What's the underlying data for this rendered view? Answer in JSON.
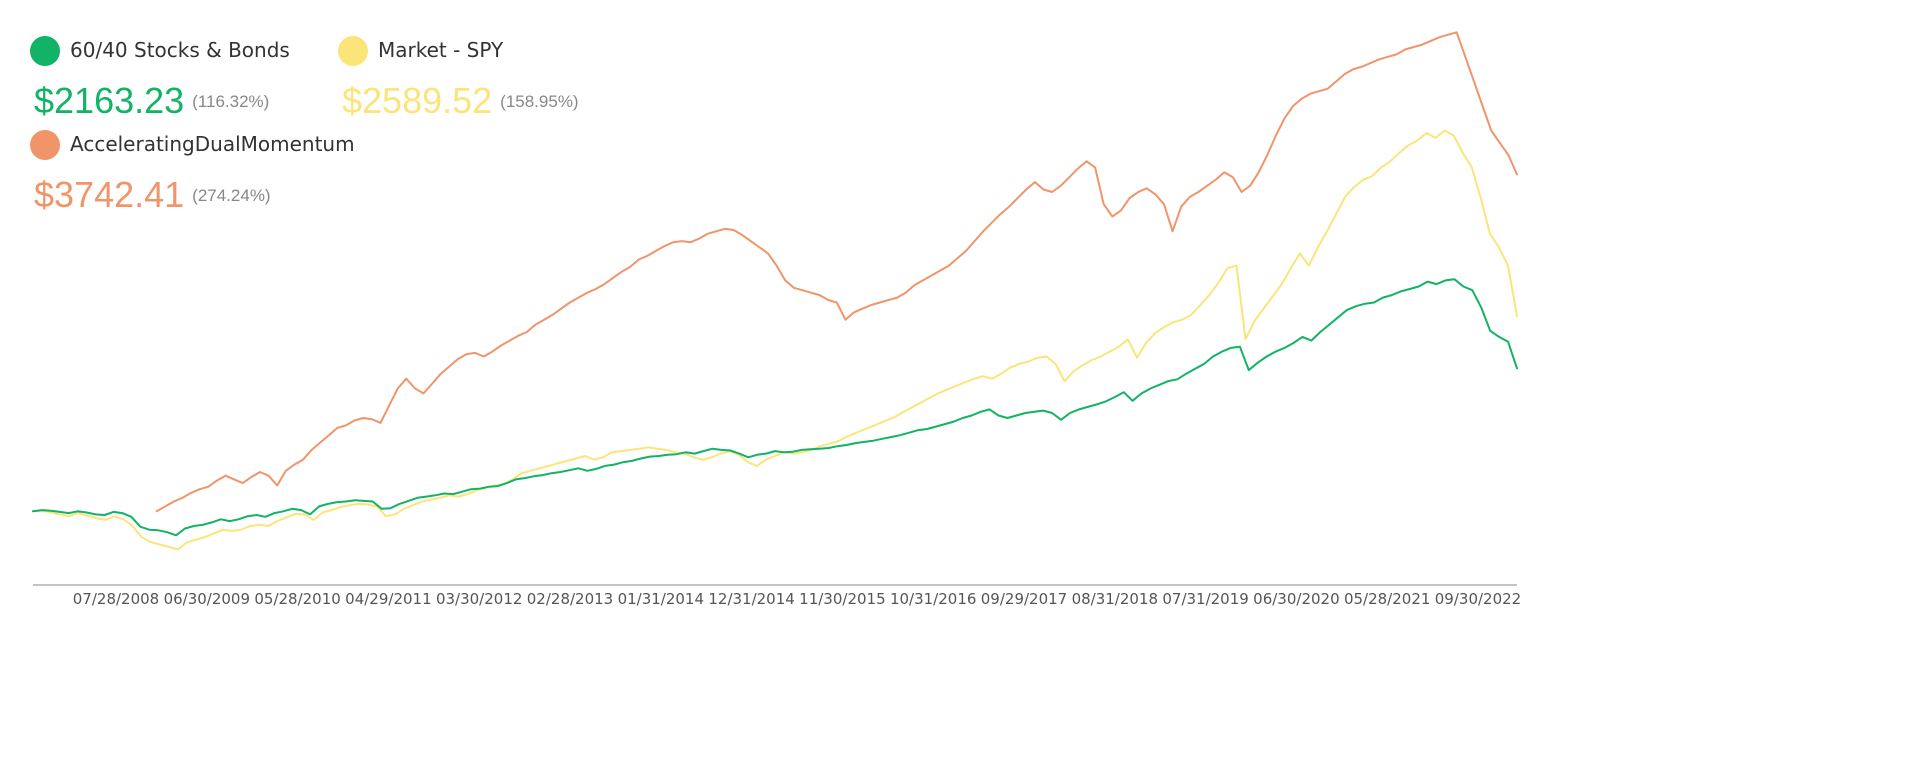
{
  "legend": [
    {
      "name": "60/40 Stocks & Bonds",
      "value": "$2163.23",
      "pct": "(116.32%)",
      "color": "#12b366"
    },
    {
      "name": "Market - SPY",
      "value": "$2589.52",
      "pct": "(158.95%)",
      "color": "#fbe57a"
    },
    {
      "name": "AcceleratingDualMomentum",
      "value": "$3742.41",
      "pct": "(274.24%)",
      "color": "#f0956a"
    }
  ],
  "chart_data": {
    "type": "line",
    "xlabel": "",
    "ylabel": "",
    "x_tick_labels": [
      "07/28/2008",
      "06/30/2009",
      "05/28/2010",
      "04/29/2011",
      "03/30/2012",
      "02/28/2013",
      "01/31/2014",
      "12/31/2014",
      "11/30/2015",
      "10/31/2016",
      "09/29/2017",
      "08/31/2018",
      "07/31/2019",
      "06/30/2020",
      "05/28/2021",
      "09/30/2022"
    ],
    "x_range": [
      "2007-12",
      "2022-12"
    ],
    "ylim": [
      400,
      5000
    ],
    "grid": false,
    "legend_position": "top-left",
    "series": [
      {
        "name": "60/40 Stocks & Bonds",
        "color": "#12b366",
        "start": "2007-12",
        "end_value": 2163.23,
        "values": [
          1000,
          1010,
          1005,
          995,
          985,
          1000,
          990,
          975,
          970,
          995,
          985,
          955,
          875,
          850,
          845,
          830,
          805,
          860,
          880,
          890,
          910,
          935,
          920,
          935,
          960,
          970,
          955,
          985,
          1000,
          1020,
          1010,
          975,
          1040,
          1060,
          1075,
          1080,
          1090,
          1085,
          1080,
          1020,
          1025,
          1060,
          1085,
          1110,
          1120,
          1130,
          1145,
          1140,
          1160,
          1180,
          1185,
          1200,
          1205,
          1230,
          1260,
          1270,
          1285,
          1295,
          1310,
          1320,
          1335,
          1350,
          1330,
          1345,
          1370,
          1380,
          1400,
          1410,
          1430,
          1445,
          1450,
          1460,
          1465,
          1480,
          1470,
          1490,
          1510,
          1500,
          1495,
          1470,
          1440,
          1460,
          1470,
          1490,
          1480,
          1485,
          1500,
          1505,
          1510,
          1515,
          1530,
          1540,
          1555,
          1565,
          1575,
          1590,
          1605,
          1620,
          1640,
          1660,
          1670,
          1690,
          1710,
          1730,
          1760,
          1780,
          1810,
          1830,
          1780,
          1760,
          1780,
          1800,
          1810,
          1820,
          1800,
          1745,
          1800,
          1830,
          1850,
          1870,
          1895,
          1930,
          1970,
          1900,
          1960,
          2000,
          2030,
          2060,
          2075,
          2120,
          2160,
          2200,
          2260,
          2300,
          2330,
          2340,
          2150,
          2210,
          2260,
          2300,
          2330,
          2370,
          2420,
          2390,
          2460,
          2520,
          2580,
          2640,
          2670,
          2690,
          2700,
          2740,
          2760,
          2790,
          2810,
          2830,
          2870,
          2850,
          2880,
          2890,
          2830,
          2800,
          2660,
          2470,
          2420,
          2380,
          2163.23
        ]
      },
      {
        "name": "Market - SPY",
        "color": "#fbe57a",
        "start": "2007-12",
        "end_value": 2589.52,
        "values": [
          1000,
          1005,
          990,
          975,
          960,
          985,
          965,
          945,
          930,
          960,
          935,
          880,
          790,
          750,
          730,
          710,
          690,
          745,
          770,
          790,
          820,
          850,
          840,
          850,
          880,
          890,
          880,
          920,
          950,
          980,
          975,
          930,
          990,
          1010,
          1035,
          1050,
          1060,
          1055,
          1040,
          960,
          975,
          1020,
          1050,
          1080,
          1095,
          1110,
          1130,
          1120,
          1140,
          1170,
          1190,
          1210,
          1220,
          1260,
          1310,
          1330,
          1350,
          1370,
          1390,
          1410,
          1430,
          1450,
          1420,
          1440,
          1480,
          1490,
          1500,
          1510,
          1520,
          1510,
          1500,
          1480,
          1470,
          1440,
          1420,
          1440,
          1470,
          1490,
          1460,
          1400,
          1370,
          1420,
          1450,
          1480,
          1470,
          1480,
          1500,
          1530,
          1550,
          1570,
          1610,
          1640,
          1670,
          1700,
          1730,
          1760,
          1800,
          1840,
          1880,
          1920,
          1960,
          1990,
          2020,
          2050,
          2080,
          2100,
          2080,
          2120,
          2170,
          2200,
          2220,
          2250,
          2260,
          2200,
          2060,
          2140,
          2190,
          2230,
          2260,
          2300,
          2340,
          2400,
          2250,
          2370,
          2450,
          2500,
          2540,
          2560,
          2600,
          2680,
          2760,
          2860,
          2980,
          3000,
          2400,
          2550,
          2650,
          2750,
          2850,
          2980,
          3100,
          3000,
          3150,
          3280,
          3420,
          3560,
          3640,
          3700,
          3730,
          3800,
          3850,
          3920,
          3980,
          4020,
          4080,
          4040,
          4100,
          4060,
          3920,
          3800,
          3550,
          3260,
          3150,
          3000,
          2589.52
        ]
      },
      {
        "name": "AcceleratingDualMomentum",
        "start": "2009-03",
        "color": "#f0956a",
        "end_value": 3742.41,
        "values": [
          1000,
          1040,
          1080,
          1110,
          1150,
          1180,
          1200,
          1250,
          1290,
          1260,
          1230,
          1280,
          1320,
          1290,
          1210,
          1330,
          1380,
          1420,
          1500,
          1560,
          1620,
          1680,
          1700,
          1740,
          1760,
          1750,
          1720,
          1860,
          2000,
          2080,
          2000,
          1960,
          2040,
          2120,
          2180,
          2240,
          2280,
          2290,
          2260,
          2300,
          2350,
          2390,
          2430,
          2460,
          2520,
          2560,
          2600,
          2650,
          2700,
          2740,
          2780,
          2810,
          2850,
          2900,
          2950,
          2990,
          3050,
          3080,
          3120,
          3160,
          3190,
          3200,
          3190,
          3220,
          3260,
          3280,
          3300,
          3290,
          3250,
          3200,
          3150,
          3100,
          3000,
          2880,
          2820,
          2800,
          2780,
          2760,
          2720,
          2700,
          2560,
          2620,
          2650,
          2680,
          2700,
          2720,
          2740,
          2780,
          2840,
          2880,
          2920,
          2960,
          3000,
          3060,
          3120,
          3200,
          3280,
          3350,
          3420,
          3480,
          3550,
          3620,
          3680,
          3620,
          3600,
          3650,
          3720,
          3790,
          3850,
          3800,
          3500,
          3400,
          3450,
          3550,
          3600,
          3630,
          3580,
          3500,
          3280,
          3480,
          3560,
          3600,
          3650,
          3700,
          3760,
          3720,
          3600,
          3650,
          3760,
          3900,
          4060,
          4200,
          4300,
          4360,
          4400,
          4420,
          4440,
          4500,
          4560,
          4600,
          4620,
          4650,
          4680,
          4700,
          4720,
          4760,
          4780,
          4800,
          4830,
          4860,
          4880,
          4900,
          4700,
          4500,
          4300,
          4100,
          4000,
          3900,
          3742.41
        ]
      }
    ]
  }
}
